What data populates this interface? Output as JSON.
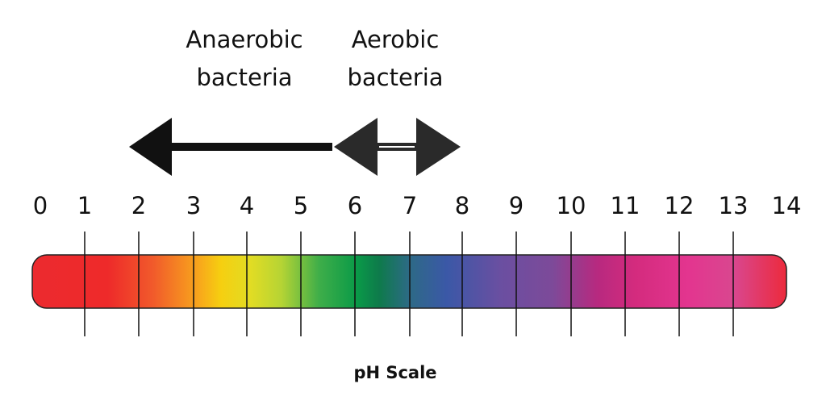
{
  "labels": {
    "anaerobic": "Anaerobic bacteria",
    "aerobic": "Aerobic bacteria"
  },
  "scale": {
    "ticks": [
      0,
      1,
      2,
      3,
      4,
      5,
      6,
      7,
      8,
      9,
      10,
      11,
      12,
      13,
      14
    ],
    "title": "pH Scale"
  }
}
